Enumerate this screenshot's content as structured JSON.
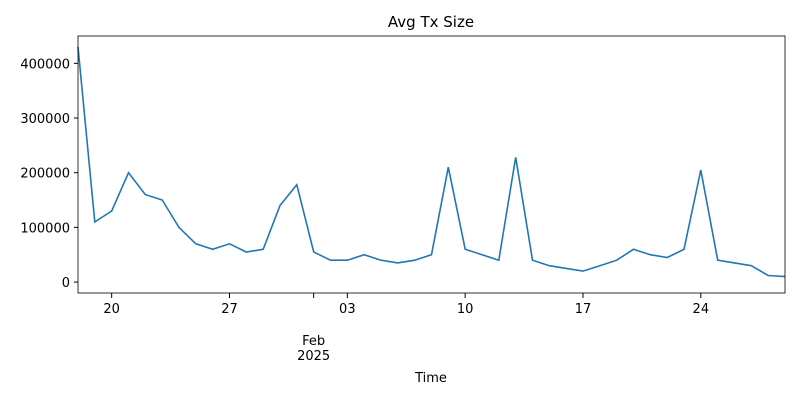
{
  "chart_data": {
    "type": "line",
    "title": "Avg Tx Size",
    "xlabel": "Time",
    "x": [
      "2025-01-18",
      "2025-01-19",
      "2025-01-20",
      "2025-01-21",
      "2025-01-22",
      "2025-01-23",
      "2025-01-24",
      "2025-01-25",
      "2025-01-26",
      "2025-01-27",
      "2025-01-28",
      "2025-01-29",
      "2025-01-30",
      "2025-01-31",
      "2025-02-01",
      "2025-02-02",
      "2025-02-03",
      "2025-02-04",
      "2025-02-05",
      "2025-02-06",
      "2025-02-07",
      "2025-02-08",
      "2025-02-09",
      "2025-02-10",
      "2025-02-11",
      "2025-02-12",
      "2025-02-13",
      "2025-02-14",
      "2025-02-15",
      "2025-02-16",
      "2025-02-17",
      "2025-02-18",
      "2025-02-19",
      "2025-02-20",
      "2025-02-21",
      "2025-02-22",
      "2025-02-23",
      "2025-02-24",
      "2025-02-25",
      "2025-02-26",
      "2025-02-27",
      "2025-02-28",
      "2025-03-01"
    ],
    "series": [
      {
        "name": "Avg Tx Size",
        "color": "#1f77b4",
        "values": [
          430000,
          110000,
          130000,
          200000,
          160000,
          150000,
          100000,
          70000,
          60000,
          70000,
          55000,
          60000,
          140000,
          178000,
          55000,
          40000,
          40000,
          50000,
          40000,
          35000,
          40000,
          50000,
          210000,
          60000,
          50000,
          40000,
          228000,
          40000,
          30000,
          25000,
          20000,
          30000,
          40000,
          60000,
          50000,
          45000,
          60000,
          205000,
          40000,
          35000,
          30000,
          12000,
          10000
        ]
      }
    ],
    "xlim": [
      "2025-01-18",
      "2025-03-01"
    ],
    "xticks": [
      {
        "value": "2025-01-20",
        "label": "20"
      },
      {
        "value": "2025-01-27",
        "label": "27"
      },
      {
        "value": "2025-02-01",
        "label": "Feb",
        "sublabel": "2025"
      },
      {
        "value": "2025-02-03",
        "label": "03"
      },
      {
        "value": "2025-02-10",
        "label": "10"
      },
      {
        "value": "2025-02-17",
        "label": "17"
      },
      {
        "value": "2025-02-24",
        "label": "24"
      }
    ],
    "ylim": [
      -20000,
      450000
    ],
    "yticks": [
      0,
      100000,
      200000,
      300000,
      400000
    ],
    "grid": false
  }
}
